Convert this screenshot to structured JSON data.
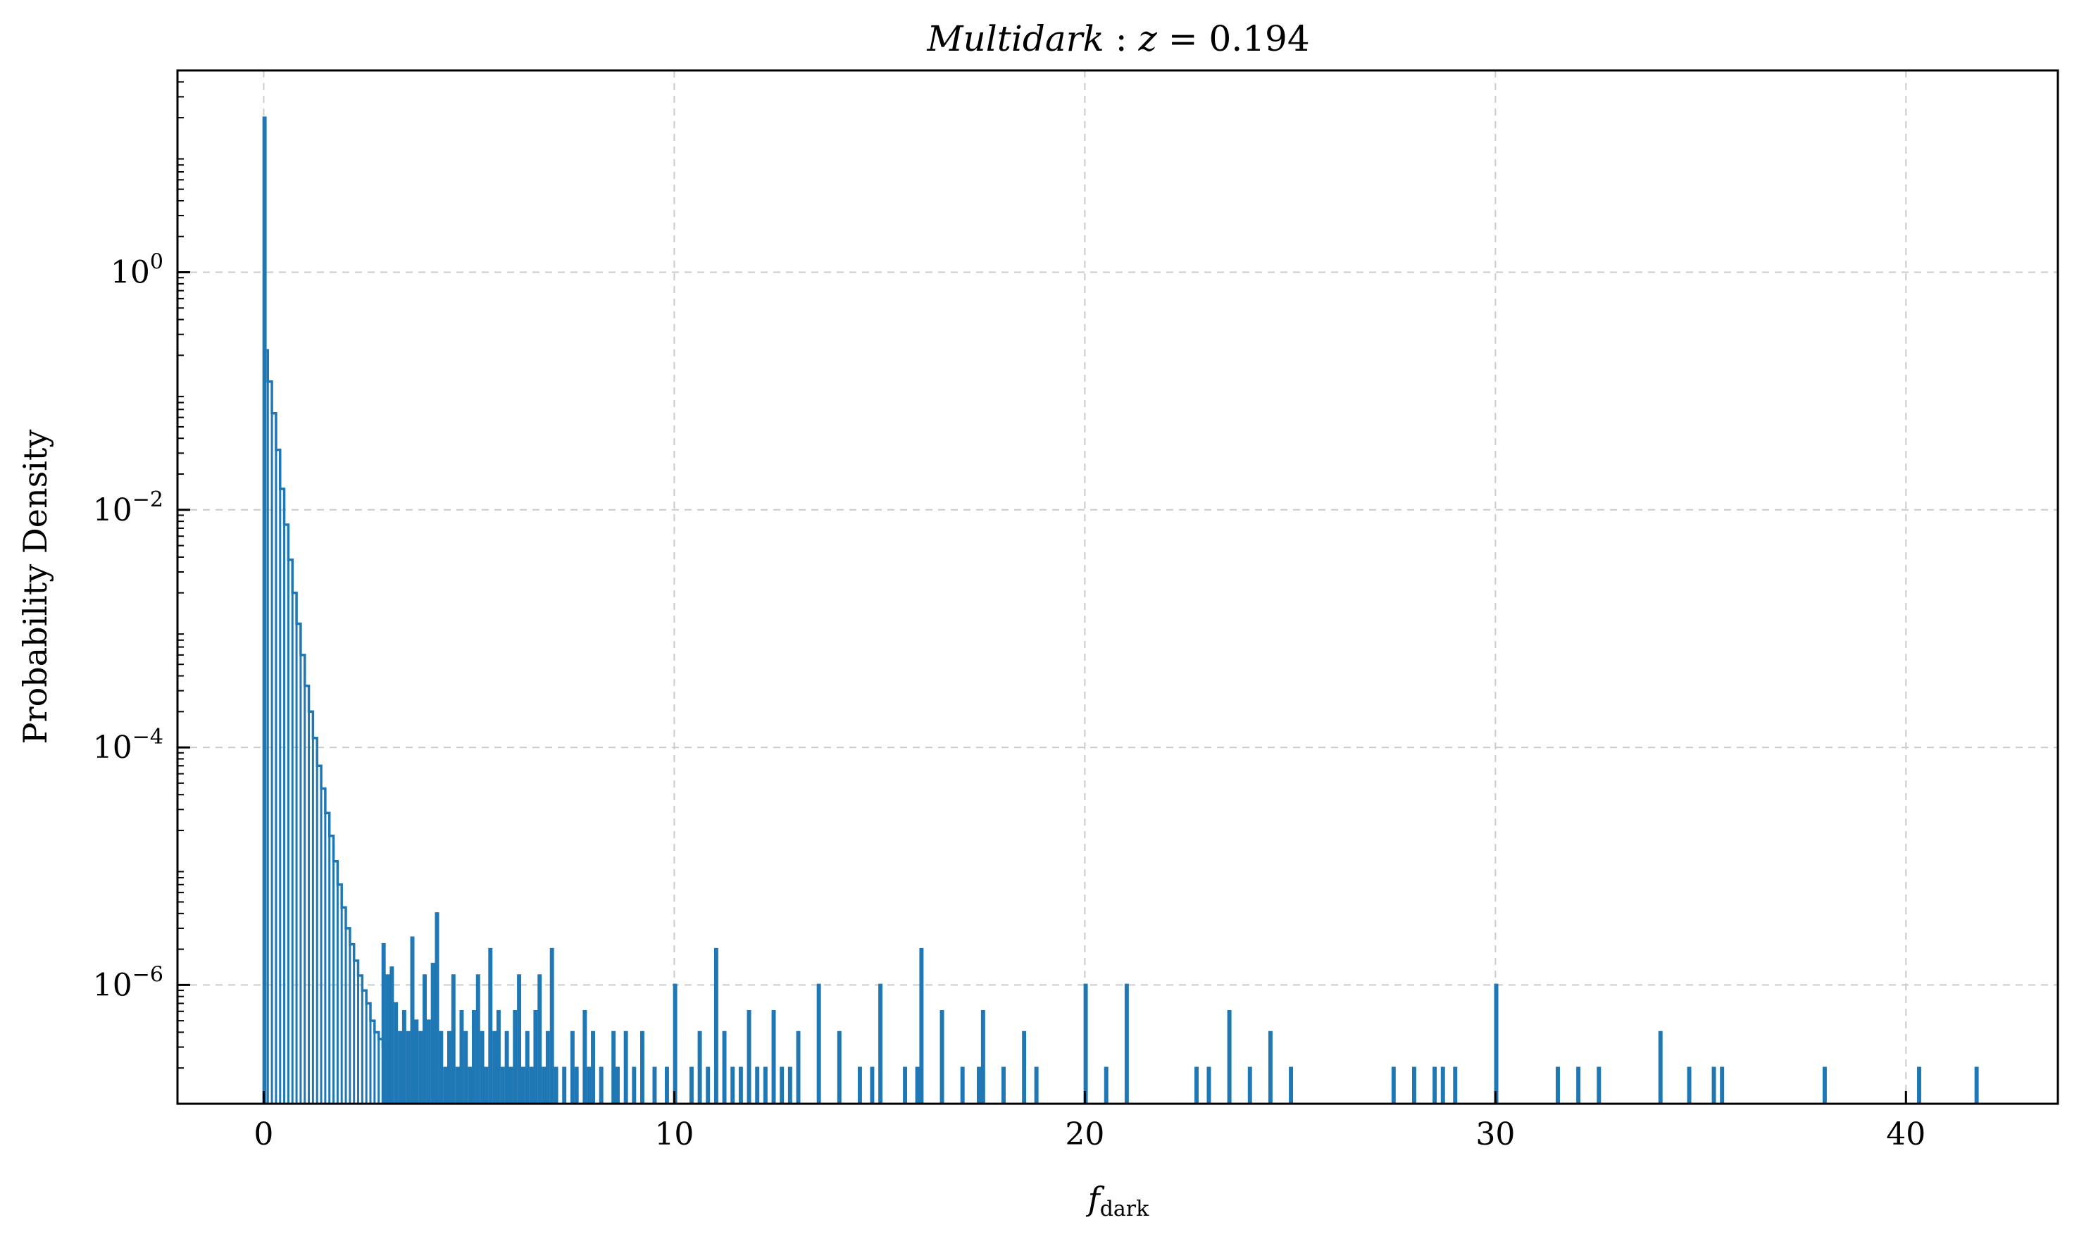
{
  "chart_data": {
    "type": "histogram",
    "title": {
      "main": "Multidark",
      "sep": " : ",
      "var": "z",
      "eq": " = ",
      "value": "0.194"
    },
    "xlabel": {
      "main": "f",
      "sub": "dark"
    },
    "ylabel": "Probability Density",
    "x_scale": "linear",
    "y_scale": "log",
    "xlim": [
      -2.1,
      43.7
    ],
    "ylim": [
      1e-07,
      50
    ],
    "x_ticks": [
      0,
      10,
      20,
      30,
      40
    ],
    "y_ticks": [
      {
        "value": 1,
        "base": "10",
        "exp": "0"
      },
      {
        "value": 0.01,
        "base": "10",
        "exp": "−2"
      },
      {
        "value": 0.0001,
        "base": "10",
        "exp": "−4"
      },
      {
        "value": 1e-06,
        "base": "10",
        "exp": "−6"
      }
    ],
    "grid": true,
    "color": "#1f77b4",
    "series": [
      {
        "bin_width": 0.0418,
        "core": {
          "comment_free": true,
          "x": [
            0.0,
            0.0418,
            0.1,
            0.2,
            0.3,
            0.4,
            0.5,
            0.6,
            0.7,
            0.8,
            0.9,
            1.0,
            1.1,
            1.2,
            1.3,
            1.4,
            1.5,
            1.6,
            1.7,
            1.8,
            1.9,
            2.0,
            2.1,
            2.2,
            2.3,
            2.4,
            2.5,
            2.6,
            2.7,
            2.8,
            2.9,
            3.0
          ],
          "y": [
            20,
            0.22,
            0.12,
            0.065,
            0.032,
            0.015,
            0.0075,
            0.0038,
            0.002,
            0.0011,
            0.0006,
            0.00033,
            0.0002,
            0.00012,
            7e-05,
            4.5e-05,
            2.8e-05,
            1.8e-05,
            1.1e-05,
            7e-06,
            4.5e-06,
            3e-06,
            2.2e-06,
            1.6e-06,
            1.2e-06,
            9e-07,
            7e-07,
            5e-07,
            4e-07,
            3.5e-07,
            3e-07,
            2.6e-07
          ]
        },
        "tail": [
          [
            2.9,
            2.2e-06
          ],
          [
            3.0,
            1.2e-06
          ],
          [
            3.1,
            1.4e-06
          ],
          [
            3.2,
            7e-07
          ],
          [
            3.3,
            4e-07
          ],
          [
            3.4,
            6e-07
          ],
          [
            3.5,
            4e-07
          ],
          [
            3.6,
            2.5e-06
          ],
          [
            3.7,
            5e-07
          ],
          [
            3.8,
            4e-07
          ],
          [
            3.9,
            1.2e-06
          ],
          [
            4.0,
            5e-07
          ],
          [
            4.1,
            1.5e-06
          ],
          [
            4.2,
            4e-06
          ],
          [
            4.3,
            4e-07
          ],
          [
            4.4,
            2e-07
          ],
          [
            4.5,
            4e-07
          ],
          [
            4.6,
            1.2e-06
          ],
          [
            4.7,
            2e-07
          ],
          [
            4.8,
            6e-07
          ],
          [
            4.9,
            4e-07
          ],
          [
            5.0,
            2e-07
          ],
          [
            5.1,
            6e-07
          ],
          [
            5.2,
            1.2e-06
          ],
          [
            5.3,
            4e-07
          ],
          [
            5.4,
            2e-07
          ],
          [
            5.5,
            2e-06
          ],
          [
            5.6,
            4e-07
          ],
          [
            5.7,
            6e-07
          ],
          [
            5.8,
            2e-07
          ],
          [
            5.9,
            4e-07
          ],
          [
            6.0,
            2e-07
          ],
          [
            6.1,
            6e-07
          ],
          [
            6.2,
            1.2e-06
          ],
          [
            6.3,
            2e-07
          ],
          [
            6.4,
            4e-07
          ],
          [
            6.5,
            2e-07
          ],
          [
            6.6,
            6e-07
          ],
          [
            6.7,
            1.2e-06
          ],
          [
            6.8,
            2e-07
          ],
          [
            6.9,
            4e-07
          ],
          [
            7.0,
            2e-06
          ],
          [
            7.1,
            2e-07
          ],
          [
            7.3,
            2e-07
          ],
          [
            7.5,
            4e-07
          ],
          [
            7.6,
            2e-07
          ],
          [
            7.8,
            6e-07
          ],
          [
            7.9,
            2e-07
          ],
          [
            8.0,
            4e-07
          ],
          [
            8.2,
            2e-07
          ],
          [
            8.5,
            4e-07
          ],
          [
            8.6,
            2e-07
          ],
          [
            8.8,
            4e-07
          ],
          [
            9.0,
            2e-07
          ],
          [
            9.2,
            4e-07
          ],
          [
            9.5,
            2e-07
          ],
          [
            9.8,
            2e-07
          ],
          [
            10.0,
            1e-06
          ],
          [
            10.4,
            2e-07
          ],
          [
            10.6,
            4e-07
          ],
          [
            10.8,
            2e-07
          ],
          [
            11.0,
            2e-06
          ],
          [
            11.2,
            4e-07
          ],
          [
            11.4,
            2e-07
          ],
          [
            11.6,
            2e-07
          ],
          [
            11.8,
            6e-07
          ],
          [
            12.0,
            2e-07
          ],
          [
            12.2,
            2e-07
          ],
          [
            12.4,
            6e-07
          ],
          [
            12.6,
            2e-07
          ],
          [
            12.8,
            2e-07
          ],
          [
            13.0,
            4e-07
          ],
          [
            13.5,
            1e-06
          ],
          [
            14.0,
            4e-07
          ],
          [
            14.5,
            2e-07
          ],
          [
            14.8,
            2e-07
          ],
          [
            15.0,
            1e-06
          ],
          [
            15.6,
            2e-07
          ],
          [
            15.9,
            2e-07
          ],
          [
            16.0,
            2e-06
          ],
          [
            16.5,
            6e-07
          ],
          [
            17.0,
            2e-07
          ],
          [
            17.4,
            2e-07
          ],
          [
            17.5,
            6e-07
          ],
          [
            18.0,
            2e-07
          ],
          [
            18.5,
            4e-07
          ],
          [
            18.8,
            2e-07
          ],
          [
            20.0,
            1e-06
          ],
          [
            20.5,
            2e-07
          ],
          [
            21.0,
            1e-06
          ],
          [
            22.7,
            2e-07
          ],
          [
            23.0,
            2e-07
          ],
          [
            23.5,
            6e-07
          ],
          [
            24.0,
            2e-07
          ],
          [
            24.5,
            4e-07
          ],
          [
            25.0,
            2e-07
          ],
          [
            27.5,
            2e-07
          ],
          [
            28.0,
            2e-07
          ],
          [
            28.5,
            2e-07
          ],
          [
            28.7,
            2e-07
          ],
          [
            29.0,
            2e-07
          ],
          [
            30.0,
            1e-06
          ],
          [
            31.5,
            2e-07
          ],
          [
            32.0,
            2e-07
          ],
          [
            32.5,
            2e-07
          ],
          [
            34.0,
            4e-07
          ],
          [
            34.7,
            2e-07
          ],
          [
            35.3,
            2e-07
          ],
          [
            35.5,
            2e-07
          ],
          [
            38.0,
            2e-07
          ],
          [
            40.3,
            2e-07
          ],
          [
            41.7,
            2e-07
          ]
        ]
      }
    ]
  }
}
